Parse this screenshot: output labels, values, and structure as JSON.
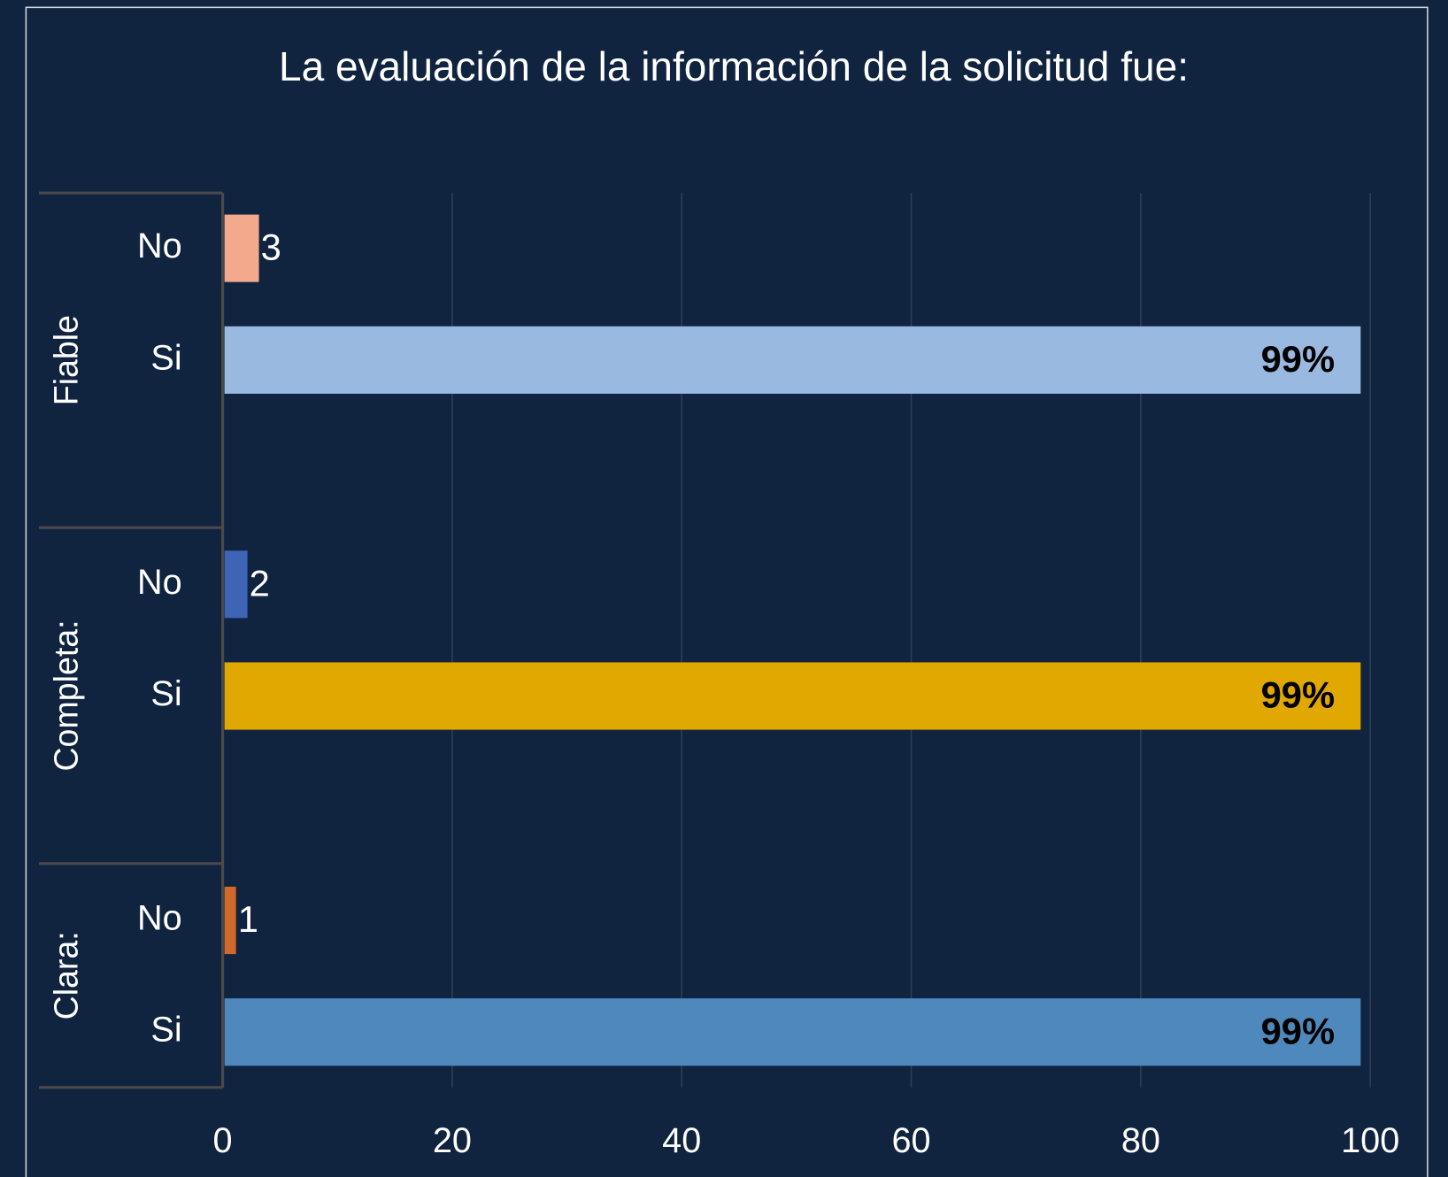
{
  "chart_data": {
    "type": "grouped-hbar",
    "title": "La evaluación de la información de la solicitud fue:",
    "groups": [
      {
        "name": "Fiable",
        "categories": [
          "No",
          "Si"
        ],
        "values": [
          3,
          99
        ],
        "value_labels": [
          "3",
          "99%"
        ],
        "colors": [
          "#f2a98c",
          "#9ab9e0"
        ]
      },
      {
        "name": "Completa:",
        "categories": [
          "No",
          "Si"
        ],
        "values": [
          2,
          99
        ],
        "value_labels": [
          "2",
          "99%"
        ],
        "colors": [
          "#3e64b5",
          "#e0a800"
        ]
      },
      {
        "name": "Clara:",
        "categories": [
          "No",
          "Si"
        ],
        "values": [
          1,
          99
        ],
        "value_labels": [
          "1",
          "99%"
        ],
        "colors": [
          "#d0692a",
          "#4f88bc"
        ]
      }
    ],
    "xlim": [
      0,
      100
    ],
    "xticks": [
      0,
      20,
      40,
      60,
      80,
      100
    ],
    "grid": true
  }
}
